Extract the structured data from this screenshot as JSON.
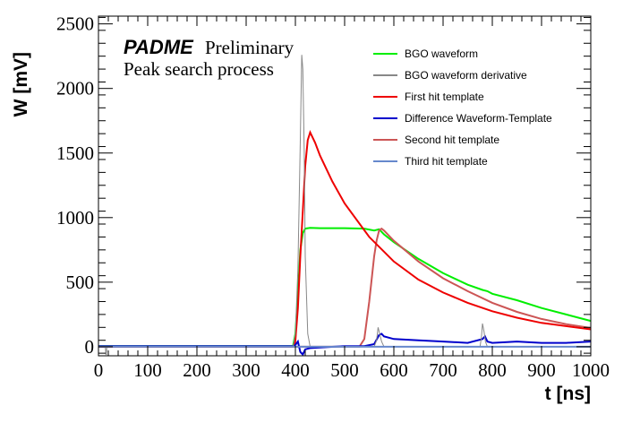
{
  "chart_data": {
    "type": "line",
    "title": "",
    "annotation": {
      "experiment": "PADME",
      "status": "Preliminary",
      "subtitle": "Peak search process"
    },
    "xlabel": "t [ns]",
    "ylabel": "W [mV]",
    "xlim": [
      0,
      1000
    ],
    "ylim": [
      -70,
      2560
    ],
    "xticks": [
      0,
      100,
      200,
      300,
      400,
      500,
      600,
      700,
      800,
      900,
      1000
    ],
    "yticks": [
      0,
      500,
      1000,
      1500,
      2000,
      2500
    ],
    "xtick_labels": [
      "0",
      "100",
      "200",
      "300",
      "400",
      "500",
      "600",
      "700",
      "800",
      "900",
      "1000"
    ],
    "ytick_labels": [
      "0",
      "500",
      "1000",
      "1500",
      "2000",
      "2500"
    ],
    "grid": false,
    "legend_position": "top-right",
    "series": [
      {
        "name": "BGO waveform",
        "color": "#00ee00",
        "x": [
          0,
          395,
          400,
          405,
          410,
          415,
          420,
          430,
          450,
          500,
          540,
          560,
          570,
          580,
          600,
          650,
          700,
          750,
          780,
          790,
          800,
          850,
          900,
          950,
          1000
        ],
        "y": [
          5,
          5,
          100,
          400,
          750,
          880,
          915,
          920,
          918,
          918,
          915,
          900,
          910,
          870,
          810,
          680,
          570,
          480,
          440,
          430,
          410,
          360,
          300,
          250,
          200
        ]
      },
      {
        "name": "BGO waveform derivative",
        "color": "#888888",
        "x": [
          0,
          14,
          15,
          16,
          17,
          395,
          400,
          405,
          410,
          413,
          415,
          418,
          420,
          425,
          430,
          560,
          565,
          568,
          570,
          575,
          580,
          775,
          778,
          780,
          783,
          786,
          790,
          1000
        ],
        "y": [
          0,
          0,
          -60,
          -60,
          0,
          0,
          100,
          600,
          1600,
          2260,
          2150,
          1500,
          700,
          100,
          0,
          0,
          50,
          150,
          120,
          40,
          0,
          0,
          80,
          180,
          120,
          40,
          0,
          0
        ]
      },
      {
        "name": "First hit template",
        "color": "#ee0000",
        "x": [
          0,
          398,
          400,
          405,
          410,
          415,
          420,
          425,
          430,
          440,
          450,
          475,
          500,
          550,
          600,
          650,
          700,
          750,
          800,
          850,
          900,
          950,
          1000
        ],
        "y": [
          0,
          0,
          50,
          300,
          700,
          1050,
          1400,
          1600,
          1660,
          1580,
          1480,
          1280,
          1110,
          850,
          660,
          520,
          420,
          340,
          275,
          225,
          185,
          160,
          135
        ]
      },
      {
        "name": "Difference Waveform-Template",
        "color": "#0000cc",
        "x": [
          0,
          398,
          405,
          410,
          415,
          420,
          430,
          500,
          540,
          560,
          570,
          575,
          580,
          600,
          650,
          700,
          750,
          780,
          785,
          790,
          800,
          850,
          900,
          950,
          1000
        ],
        "y": [
          5,
          5,
          40,
          -40,
          -60,
          -20,
          -10,
          5,
          5,
          20,
          90,
          100,
          80,
          60,
          50,
          40,
          30,
          60,
          80,
          40,
          30,
          40,
          30,
          30,
          40
        ]
      },
      {
        "name": "Second hit template",
        "color": "#cc5555",
        "x": [
          0,
          530,
          540,
          550,
          560,
          565,
          570,
          575,
          580,
          600,
          650,
          700,
          750,
          800,
          850,
          900,
          950,
          1000
        ],
        "y": [
          0,
          0,
          60,
          350,
          700,
          820,
          900,
          915,
          900,
          820,
          660,
          530,
          430,
          340,
          270,
          215,
          175,
          145
        ]
      },
      {
        "name": "Third hit template",
        "color": "#6688cc",
        "x": [
          0,
          1000
        ],
        "y": [
          0,
          0
        ]
      }
    ]
  }
}
